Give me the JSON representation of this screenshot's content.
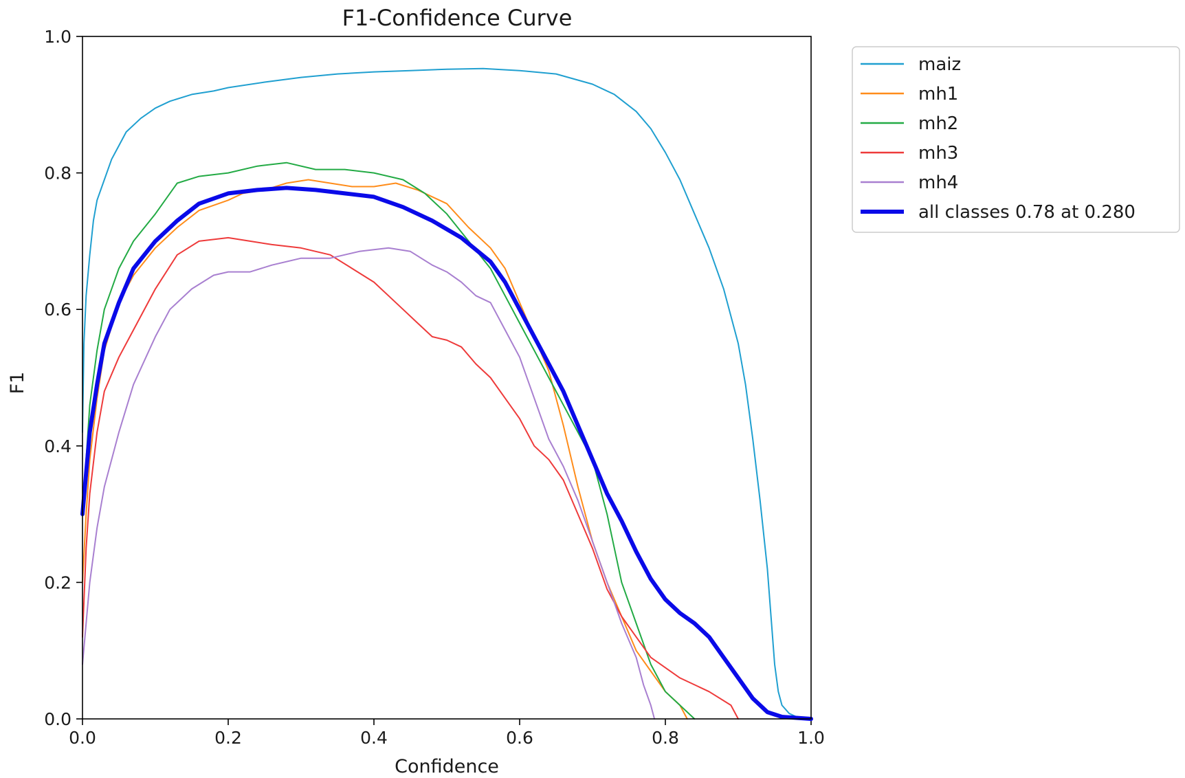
{
  "chart_data": {
    "type": "line",
    "title": "F1-Confidence Curve",
    "xlabel": "Confidence",
    "ylabel": "F1",
    "xlim": [
      0,
      1
    ],
    "ylim": [
      0,
      1
    ],
    "xticks": [
      "0.0",
      "0.2",
      "0.4",
      "0.6",
      "0.8",
      "1.0"
    ],
    "yticks": [
      "0.0",
      "0.2",
      "0.4",
      "0.6",
      "0.8",
      "1.0"
    ],
    "grid": false,
    "legend_position": "outside-top-right",
    "series": [
      {
        "name": "maiz",
        "color": "#1f9fd0",
        "width": "thin",
        "points": [
          [
            0,
            0.42
          ],
          [
            0.002,
            0.55
          ],
          [
            0.005,
            0.62
          ],
          [
            0.01,
            0.68
          ],
          [
            0.015,
            0.73
          ],
          [
            0.02,
            0.76
          ],
          [
            0.03,
            0.79
          ],
          [
            0.04,
            0.82
          ],
          [
            0.05,
            0.84
          ],
          [
            0.06,
            0.86
          ],
          [
            0.08,
            0.88
          ],
          [
            0.1,
            0.895
          ],
          [
            0.12,
            0.905
          ],
          [
            0.15,
            0.915
          ],
          [
            0.18,
            0.92
          ],
          [
            0.2,
            0.925
          ],
          [
            0.25,
            0.933
          ],
          [
            0.3,
            0.94
          ],
          [
            0.35,
            0.945
          ],
          [
            0.4,
            0.948
          ],
          [
            0.45,
            0.95
          ],
          [
            0.5,
            0.952
          ],
          [
            0.55,
            0.953
          ],
          [
            0.6,
            0.95
          ],
          [
            0.65,
            0.945
          ],
          [
            0.7,
            0.93
          ],
          [
            0.73,
            0.915
          ],
          [
            0.76,
            0.89
          ],
          [
            0.78,
            0.865
          ],
          [
            0.8,
            0.83
          ],
          [
            0.82,
            0.79
          ],
          [
            0.84,
            0.74
          ],
          [
            0.86,
            0.69
          ],
          [
            0.88,
            0.63
          ],
          [
            0.9,
            0.55
          ],
          [
            0.91,
            0.49
          ],
          [
            0.92,
            0.41
          ],
          [
            0.93,
            0.32
          ],
          [
            0.94,
            0.22
          ],
          [
            0.945,
            0.15
          ],
          [
            0.95,
            0.08
          ],
          [
            0.955,
            0.04
          ],
          [
            0.96,
            0.02
          ],
          [
            0.97,
            0.008
          ],
          [
            0.98,
            0.003
          ],
          [
            1.0,
            0.0
          ]
        ]
      },
      {
        "name": "mh1",
        "color": "#ff8c1a",
        "width": "thin",
        "points": [
          [
            0,
            0.2
          ],
          [
            0.005,
            0.3
          ],
          [
            0.01,
            0.38
          ],
          [
            0.02,
            0.47
          ],
          [
            0.03,
            0.54
          ],
          [
            0.05,
            0.61
          ],
          [
            0.07,
            0.65
          ],
          [
            0.1,
            0.69
          ],
          [
            0.13,
            0.72
          ],
          [
            0.16,
            0.745
          ],
          [
            0.2,
            0.76
          ],
          [
            0.22,
            0.77
          ],
          [
            0.25,
            0.775
          ],
          [
            0.28,
            0.785
          ],
          [
            0.31,
            0.79
          ],
          [
            0.34,
            0.785
          ],
          [
            0.37,
            0.78
          ],
          [
            0.4,
            0.78
          ],
          [
            0.43,
            0.785
          ],
          [
            0.46,
            0.775
          ],
          [
            0.5,
            0.755
          ],
          [
            0.53,
            0.72
          ],
          [
            0.56,
            0.69
          ],
          [
            0.58,
            0.66
          ],
          [
            0.6,
            0.61
          ],
          [
            0.62,
            0.56
          ],
          [
            0.64,
            0.51
          ],
          [
            0.66,
            0.43
          ],
          [
            0.68,
            0.34
          ],
          [
            0.7,
            0.26
          ],
          [
            0.72,
            0.2
          ],
          [
            0.74,
            0.15
          ],
          [
            0.76,
            0.1
          ],
          [
            0.78,
            0.07
          ],
          [
            0.8,
            0.04
          ],
          [
            0.82,
            0.02
          ],
          [
            0.83,
            0.0
          ]
        ]
      },
      {
        "name": "mh2",
        "color": "#22aa44",
        "width": "thin",
        "points": [
          [
            0,
            0.3
          ],
          [
            0.005,
            0.38
          ],
          [
            0.01,
            0.46
          ],
          [
            0.02,
            0.54
          ],
          [
            0.03,
            0.6
          ],
          [
            0.05,
            0.66
          ],
          [
            0.07,
            0.7
          ],
          [
            0.1,
            0.74
          ],
          [
            0.13,
            0.785
          ],
          [
            0.16,
            0.795
          ],
          [
            0.2,
            0.8
          ],
          [
            0.24,
            0.81
          ],
          [
            0.28,
            0.815
          ],
          [
            0.32,
            0.805
          ],
          [
            0.36,
            0.805
          ],
          [
            0.4,
            0.8
          ],
          [
            0.44,
            0.79
          ],
          [
            0.47,
            0.77
          ],
          [
            0.5,
            0.74
          ],
          [
            0.53,
            0.7
          ],
          [
            0.56,
            0.66
          ],
          [
            0.58,
            0.62
          ],
          [
            0.6,
            0.58
          ],
          [
            0.62,
            0.54
          ],
          [
            0.64,
            0.5
          ],
          [
            0.66,
            0.46
          ],
          [
            0.68,
            0.42
          ],
          [
            0.7,
            0.38
          ],
          [
            0.72,
            0.3
          ],
          [
            0.74,
            0.2
          ],
          [
            0.76,
            0.14
          ],
          [
            0.78,
            0.08
          ],
          [
            0.8,
            0.04
          ],
          [
            0.82,
            0.02
          ],
          [
            0.84,
            0.0
          ]
        ]
      },
      {
        "name": "mh3",
        "color": "#ee3a3a",
        "width": "thin",
        "points": [
          [
            0,
            0.12
          ],
          [
            0.005,
            0.25
          ],
          [
            0.01,
            0.33
          ],
          [
            0.02,
            0.42
          ],
          [
            0.03,
            0.48
          ],
          [
            0.05,
            0.53
          ],
          [
            0.07,
            0.57
          ],
          [
            0.1,
            0.63
          ],
          [
            0.13,
            0.68
          ],
          [
            0.16,
            0.7
          ],
          [
            0.2,
            0.705
          ],
          [
            0.23,
            0.7
          ],
          [
            0.26,
            0.695
          ],
          [
            0.3,
            0.69
          ],
          [
            0.34,
            0.68
          ],
          [
            0.37,
            0.66
          ],
          [
            0.4,
            0.64
          ],
          [
            0.42,
            0.62
          ],
          [
            0.44,
            0.6
          ],
          [
            0.46,
            0.58
          ],
          [
            0.48,
            0.56
          ],
          [
            0.5,
            0.555
          ],
          [
            0.52,
            0.545
          ],
          [
            0.54,
            0.52
          ],
          [
            0.56,
            0.5
          ],
          [
            0.58,
            0.47
          ],
          [
            0.6,
            0.44
          ],
          [
            0.62,
            0.4
          ],
          [
            0.64,
            0.38
          ],
          [
            0.66,
            0.35
          ],
          [
            0.68,
            0.3
          ],
          [
            0.7,
            0.25
          ],
          [
            0.72,
            0.19
          ],
          [
            0.74,
            0.15
          ],
          [
            0.76,
            0.12
          ],
          [
            0.78,
            0.09
          ],
          [
            0.82,
            0.06
          ],
          [
            0.86,
            0.04
          ],
          [
            0.89,
            0.02
          ],
          [
            0.9,
            0.0
          ]
        ]
      },
      {
        "name": "mh4",
        "color": "#a87fd0",
        "width": "thin",
        "points": [
          [
            0,
            0.08
          ],
          [
            0.005,
            0.14
          ],
          [
            0.01,
            0.2
          ],
          [
            0.02,
            0.28
          ],
          [
            0.03,
            0.34
          ],
          [
            0.05,
            0.42
          ],
          [
            0.07,
            0.49
          ],
          [
            0.1,
            0.56
          ],
          [
            0.12,
            0.6
          ],
          [
            0.15,
            0.63
          ],
          [
            0.18,
            0.65
          ],
          [
            0.2,
            0.655
          ],
          [
            0.23,
            0.655
          ],
          [
            0.26,
            0.665
          ],
          [
            0.3,
            0.675
          ],
          [
            0.34,
            0.675
          ],
          [
            0.38,
            0.685
          ],
          [
            0.42,
            0.69
          ],
          [
            0.45,
            0.685
          ],
          [
            0.48,
            0.665
          ],
          [
            0.5,
            0.655
          ],
          [
            0.52,
            0.64
          ],
          [
            0.54,
            0.62
          ],
          [
            0.56,
            0.61
          ],
          [
            0.58,
            0.57
          ],
          [
            0.6,
            0.53
          ],
          [
            0.62,
            0.47
          ],
          [
            0.64,
            0.41
          ],
          [
            0.66,
            0.37
          ],
          [
            0.68,
            0.32
          ],
          [
            0.7,
            0.26
          ],
          [
            0.72,
            0.2
          ],
          [
            0.74,
            0.14
          ],
          [
            0.76,
            0.09
          ],
          [
            0.77,
            0.05
          ],
          [
            0.78,
            0.02
          ],
          [
            0.785,
            0.0
          ]
        ]
      },
      {
        "name": "all classes 0.78 at 0.280",
        "color": "#0a0ae8",
        "width": "thick",
        "points": [
          [
            0,
            0.3
          ],
          [
            0.005,
            0.36
          ],
          [
            0.01,
            0.42
          ],
          [
            0.02,
            0.49
          ],
          [
            0.03,
            0.55
          ],
          [
            0.05,
            0.61
          ],
          [
            0.07,
            0.66
          ],
          [
            0.1,
            0.7
          ],
          [
            0.13,
            0.73
          ],
          [
            0.16,
            0.755
          ],
          [
            0.2,
            0.77
          ],
          [
            0.24,
            0.775
          ],
          [
            0.28,
            0.778
          ],
          [
            0.32,
            0.775
          ],
          [
            0.36,
            0.77
          ],
          [
            0.4,
            0.765
          ],
          [
            0.44,
            0.75
          ],
          [
            0.48,
            0.73
          ],
          [
            0.52,
            0.705
          ],
          [
            0.56,
            0.67
          ],
          [
            0.58,
            0.64
          ],
          [
            0.6,
            0.6
          ],
          [
            0.62,
            0.56
          ],
          [
            0.64,
            0.52
          ],
          [
            0.66,
            0.48
          ],
          [
            0.68,
            0.43
          ],
          [
            0.7,
            0.38
          ],
          [
            0.72,
            0.33
          ],
          [
            0.74,
            0.29
          ],
          [
            0.76,
            0.245
          ],
          [
            0.78,
            0.205
          ],
          [
            0.8,
            0.175
          ],
          [
            0.82,
            0.155
          ],
          [
            0.84,
            0.14
          ],
          [
            0.86,
            0.12
          ],
          [
            0.88,
            0.09
          ],
          [
            0.9,
            0.06
          ],
          [
            0.92,
            0.03
          ],
          [
            0.94,
            0.01
          ],
          [
            0.96,
            0.003
          ],
          [
            1.0,
            0.0
          ]
        ]
      }
    ]
  }
}
